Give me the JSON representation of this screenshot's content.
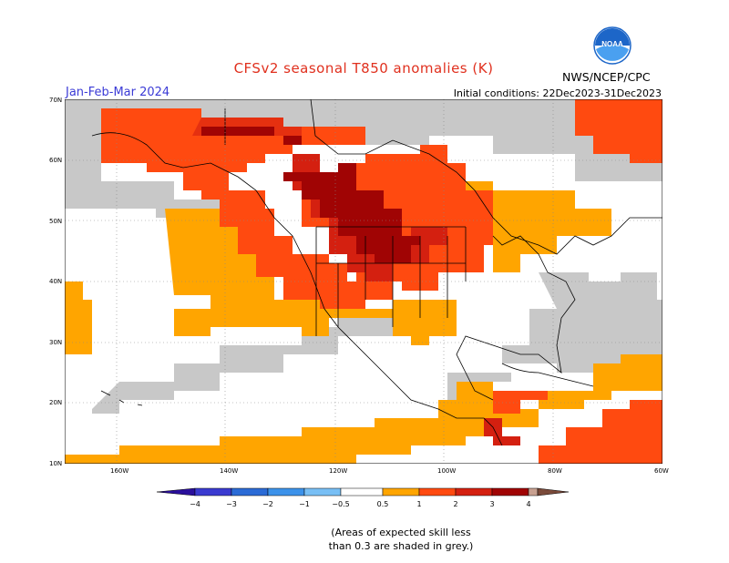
{
  "header": {
    "title": "CFSv2 seasonal T850 anomalies (K)",
    "period": "Jan-Feb-Mar 2024",
    "initial_conditions": "Initial conditions: 22Dec2023-31Dec2023",
    "agency": "NWS/NCEP/CPC",
    "logo_text": "NOAA"
  },
  "map": {
    "lat_labels": [
      "70N",
      "60N",
      "50N",
      "40N",
      "30N",
      "20N",
      "10N"
    ],
    "lon_labels": [
      "160W",
      "140W",
      "120W",
      "100W",
      "80W",
      "60W"
    ],
    "regions": {
      "western_canada_core": "3 to 4",
      "northern_plains_canada": "2 to 3",
      "alaska_west_canada": "1 to 2",
      "eastern_us_southeast": "-0.5 to 0.5",
      "caribbean_east": "1 to 2",
      "grey_area": "skill < 0.3"
    }
  },
  "legend": {
    "labels": [
      "−4",
      "−3",
      "−2",
      "−1",
      "−0.5",
      "0.5",
      "1",
      "2",
      "3",
      "4"
    ],
    "colors": {
      "lt_-4": "#2a0f9c",
      "-4_-3": "#3a3ad0",
      "-3_-2": "#2b6bd6",
      "-2_-1": "#3c92ea",
      "-1_-0.5": "#78bff5",
      "-0.5_0.5": "#ffffff",
      "0.5_1": "#ffa500",
      "1_2": "#ff4a10",
      "2_3": "#d42010",
      "3_4": "#a00404",
      "4_5": "#c8a090",
      "gt_5": "#7a4a3a",
      "low_skill": "#c8c8c8"
    }
  },
  "note": {
    "line1": "(Areas of expected skill less",
    "line2": "than 0.3 are shaded in grey.)"
  }
}
